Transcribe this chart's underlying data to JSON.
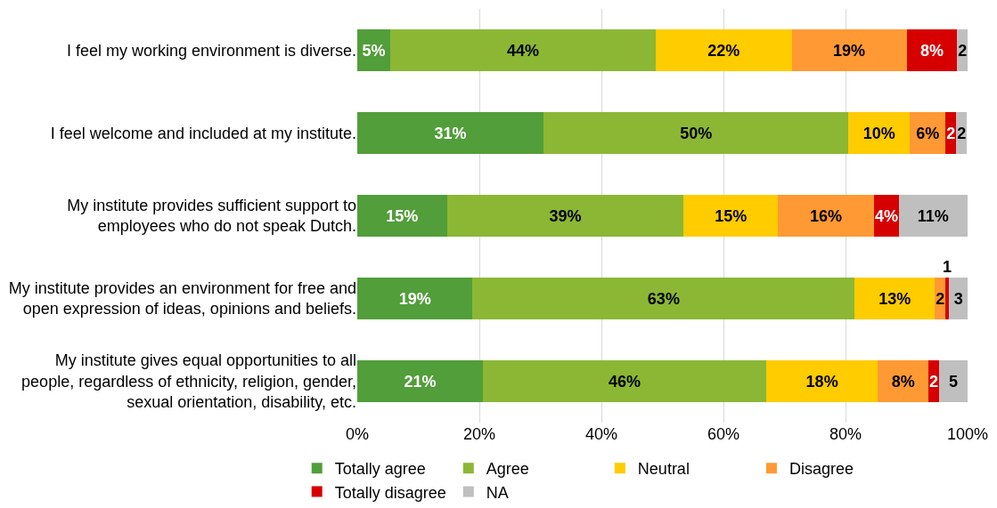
{
  "chart_data": {
    "type": "bar",
    "orientation": "horizontal",
    "stacked": true,
    "categories": [
      "I feel my working environment is diverse.",
      "I feel welcome and included at my institute.",
      "My institute provides sufficient support to employees who do not speak Dutch.",
      "My institute provides an environment for free and open expression of ideas, opinions and beliefs.",
      "My institute gives equal opportunities to all people, regardless of ethnicity, religion, gender, sexual orientation, disability, etc."
    ],
    "series": [
      {
        "name": "Totally agree",
        "color": "#519e3a",
        "values": [
          5.4,
          30.5,
          14.7,
          18.9,
          20.6
        ],
        "value_labels": [
          "5%",
          "31%",
          "15%",
          "19%",
          "21%"
        ]
      },
      {
        "name": "Agree",
        "color": "#8bb735",
        "values": [
          43.5,
          50.0,
          38.8,
          62.6,
          46.4
        ],
        "value_labels": [
          "44%",
          "50%",
          "39%",
          "63%",
          "46%"
        ]
      },
      {
        "name": "Neutral",
        "color": "#ffcc00",
        "values": [
          22.3,
          10.0,
          15.4,
          13.1,
          18.3
        ],
        "value_labels": [
          "22%",
          "10%",
          "15%",
          "13%",
          "18%"
        ]
      },
      {
        "name": "Disagree",
        "color": "#ff9933",
        "values": [
          18.8,
          5.9,
          15.8,
          1.8,
          8.3
        ],
        "value_labels": [
          "19%",
          "6%",
          "16%",
          "2",
          "8%"
        ]
      },
      {
        "name": "Totally disagree",
        "color": "#d60000",
        "values": [
          8.3,
          1.7,
          4.0,
          0.6,
          1.7
        ],
        "value_labels": [
          "8%",
          "2",
          "4%",
          "1",
          "2"
        ]
      },
      {
        "name": "NA",
        "color": "#bfbfbf",
        "values": [
          1.7,
          1.8,
          11.3,
          3.0,
          4.7
        ],
        "value_labels": [
          "2",
          "2",
          "11%",
          "3",
          "5"
        ]
      }
    ],
    "xlim": [
      0,
      100
    ],
    "xticks": [
      {
        "value": 0,
        "label": "0%"
      },
      {
        "value": 20,
        "label": "20%"
      },
      {
        "value": 40,
        "label": "40%"
      },
      {
        "value": 60,
        "label": "60%"
      },
      {
        "value": 80,
        "label": "80%"
      },
      {
        "value": 100,
        "label": "100%"
      }
    ],
    "grid": "x",
    "legend": "bottom"
  }
}
